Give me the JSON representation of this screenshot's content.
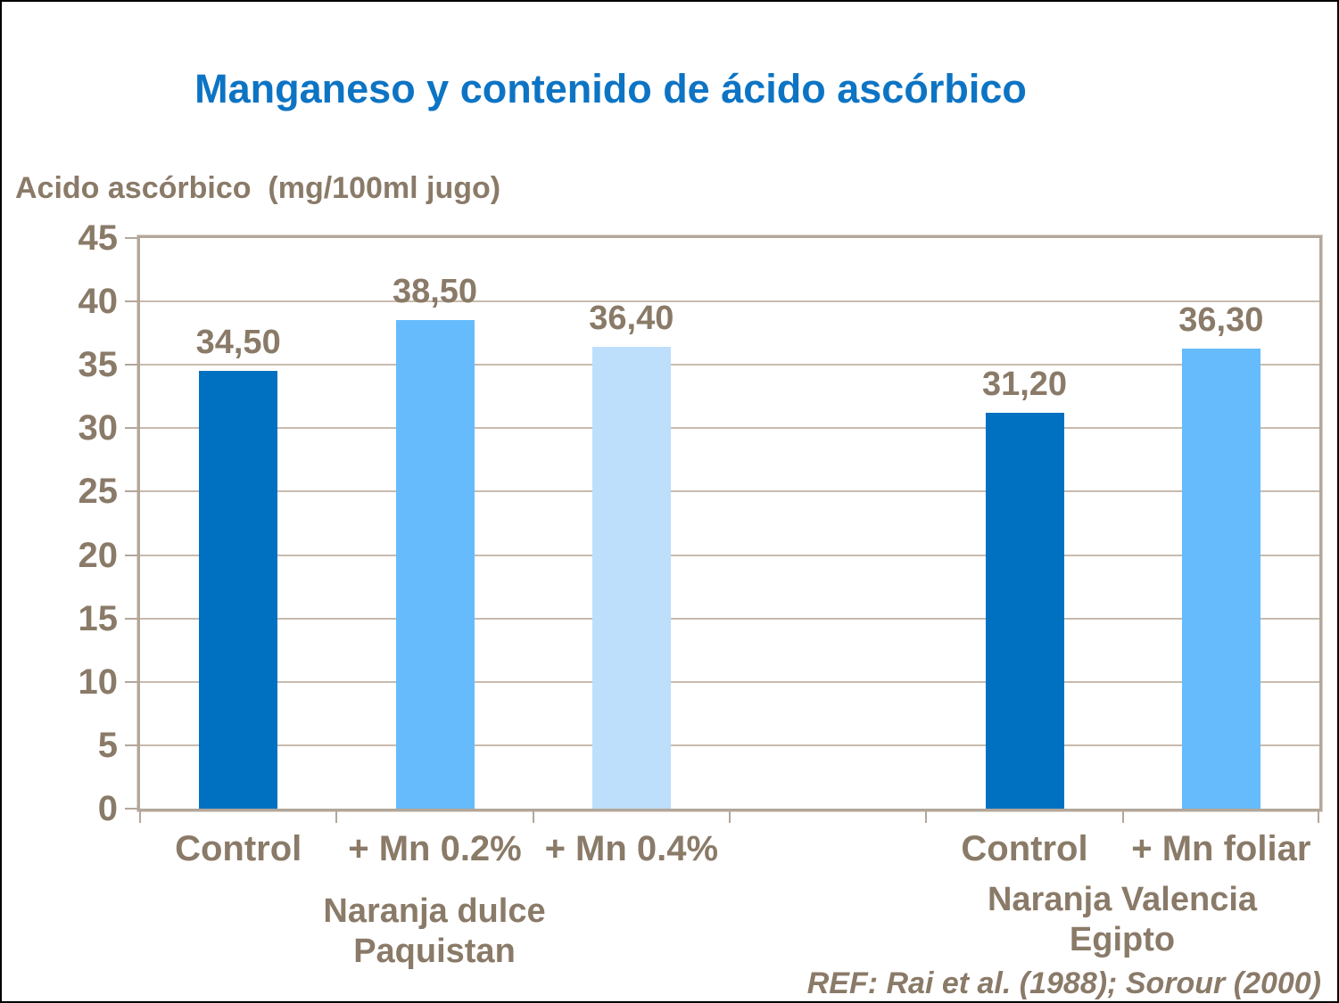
{
  "title": "Manganeso y contenido de ácido ascórbico",
  "axis_title": "Acido ascórbico  (mg/100ml jugo)",
  "reference": "REF: Rai et al. (1988); Sorour (2000)",
  "colors": {
    "title_text": "#0D74C4",
    "axis_text": "#8A7A68",
    "plot_border": "#B3A79B",
    "gridline": "#C7BBAE",
    "bar_dark_blue": "#0070C0",
    "bar_medium_blue": "#66BBFC",
    "bar_light_blue": "#BDDFFB",
    "page_border": "#000000"
  },
  "chart_data": {
    "type": "bar",
    "title": "Manganeso y contenido de ácido ascórbico",
    "ylabel": "Acido ascórbico (mg/100ml jugo)",
    "xlabel": "",
    "ylim": [
      0,
      45
    ],
    "yticks": [
      0,
      5,
      10,
      15,
      20,
      25,
      30,
      35,
      40,
      45
    ],
    "grid": true,
    "legend": "none",
    "categories": [
      "Control",
      "+ Mn 0.2%",
      "+ Mn 0.4%",
      "",
      "Control",
      "+ Mn foliar"
    ],
    "values": [
      34.5,
      38.5,
      36.4,
      null,
      31.2,
      36.3
    ],
    "value_labels": [
      "34,50",
      "38,50",
      "36,40",
      "",
      "31,20",
      "36,30"
    ],
    "bar_colors": [
      "#0070C0",
      "#66BBFC",
      "#BDDFFB",
      null,
      "#0070C0",
      "#66BBFC"
    ],
    "groups": [
      {
        "line1": "Naranja dulce",
        "line2": "Paquistan",
        "category_indexes": [
          0,
          1,
          2
        ]
      },
      {
        "line1": "Naranja Valencia",
        "line2": "Egipto",
        "category_indexes": [
          4,
          5
        ]
      }
    ],
    "reference": "REF: Rai et al. (1988); Sorour (2000)"
  }
}
